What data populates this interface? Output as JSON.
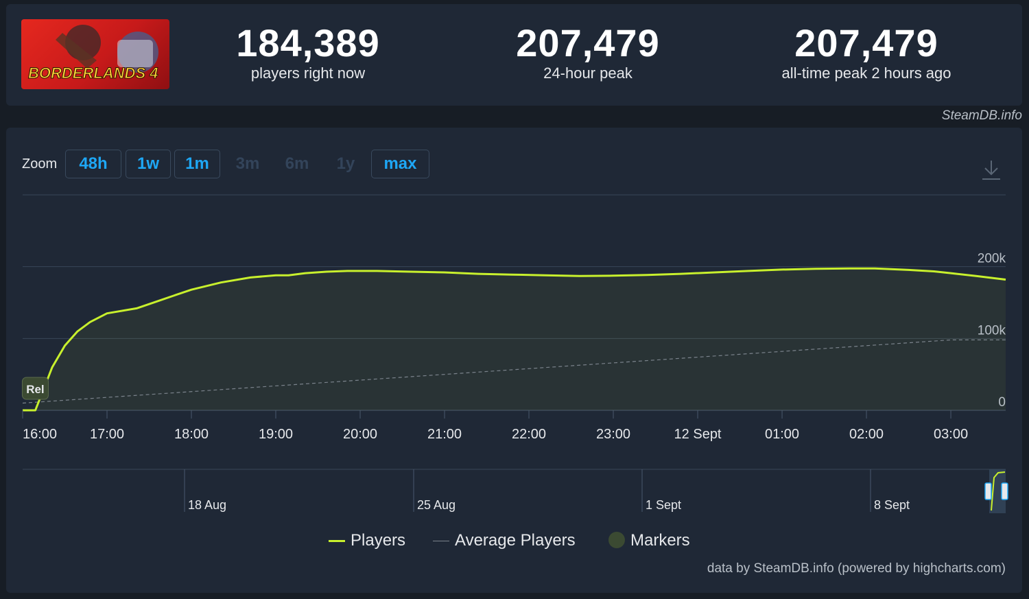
{
  "colors": {
    "background": "#171d25",
    "card": "#1f2836",
    "players_line": "#c8f02d",
    "average_line": "#7b838c",
    "accent": "#1ea7f5",
    "marker": "#3b4a32"
  },
  "header": {
    "logo_text": "BORDERLANDS 4",
    "stats": [
      {
        "value": "184,389",
        "label": "players right now"
      },
      {
        "value": "207,479",
        "label": "24-hour peak"
      },
      {
        "value": "207,479",
        "label": "all-time peak 2 hours ago"
      }
    ],
    "credit": "SteamDB.info"
  },
  "zoom": {
    "label": "Zoom",
    "buttons": [
      {
        "label": "48h",
        "enabled": true
      },
      {
        "label": "1w",
        "enabled": true
      },
      {
        "label": "1m",
        "enabled": true
      },
      {
        "label": "3m",
        "enabled": false
      },
      {
        "label": "6m",
        "enabled": false
      },
      {
        "label": "1y",
        "enabled": false
      },
      {
        "label": "max",
        "enabled": true
      }
    ],
    "download_icon": "download-icon"
  },
  "chart_data": {
    "type": "line",
    "x_ticks": [
      "16:00",
      "17:00",
      "18:00",
      "19:00",
      "20:00",
      "21:00",
      "22:00",
      "23:00",
      "12 Sept",
      "01:00",
      "02:00",
      "03:00"
    ],
    "y_ticks": [
      "0",
      "100k",
      "200k"
    ],
    "ylim": [
      0,
      300000
    ],
    "xlim": [
      16.0,
      27.65
    ],
    "grid": true,
    "series": [
      {
        "name": "Players",
        "x": [
          16.0,
          16.15,
          16.35,
          16.5,
          16.65,
          16.8,
          17.0,
          17.35,
          17.6,
          17.8,
          18.0,
          18.35,
          18.7,
          19.0,
          19.15,
          19.35,
          19.6,
          19.85,
          20.2,
          20.6,
          21.0,
          21.4,
          21.8,
          22.2,
          22.6,
          23.0,
          23.4,
          23.8,
          24.2,
          24.6,
          25.0,
          25.4,
          25.8,
          26.1,
          26.5,
          26.8,
          27.0,
          27.3,
          27.65
        ],
        "y": [
          0,
          0,
          60000,
          90000,
          110000,
          123000,
          135000,
          142000,
          152000,
          160000,
          168000,
          178000,
          185000,
          188000,
          188000,
          191000,
          193000,
          194000,
          194000,
          193000,
          192000,
          190000,
          189000,
          188000,
          187000,
          187500,
          188500,
          190000,
          192000,
          194000,
          196000,
          197000,
          197500,
          197500,
          195500,
          193500,
          191000,
          187000,
          182000
        ]
      },
      {
        "name": "Average Players",
        "x": [
          16.0,
          27.0,
          27.65
        ],
        "y": [
          10000,
          98000,
          98000
        ]
      }
    ],
    "markers": [
      {
        "label": "Rel",
        "x": 16.15
      }
    ],
    "navigator_labels": [
      "18 Aug",
      "25 Aug",
      "1 Sept",
      "8 Sept"
    ],
    "legend": [
      "Players",
      "Average Players",
      "Markers"
    ],
    "legend_position": "bottom-center"
  },
  "footer": {
    "credit": "data by SteamDB.info (powered by highcharts.com)"
  }
}
